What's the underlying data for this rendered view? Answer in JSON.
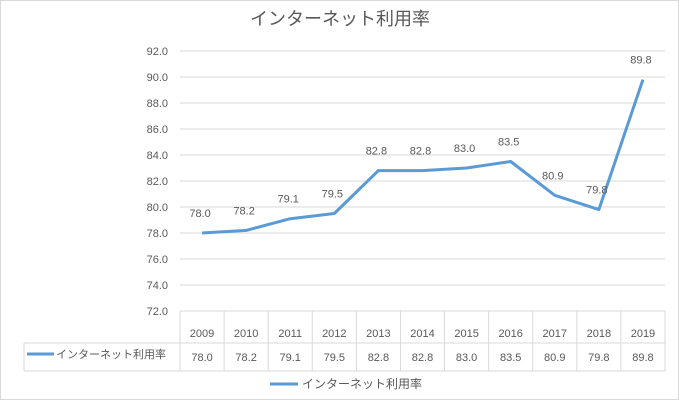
{
  "chart_data": {
    "type": "line",
    "title": "インターネット利用率",
    "categories": [
      "2009",
      "2010",
      "2011",
      "2012",
      "2013",
      "2014",
      "2015",
      "2016",
      "2017",
      "2018",
      "2019"
    ],
    "series": [
      {
        "name": "インターネット利用率",
        "values": [
          78.0,
          78.2,
          79.1,
          79.5,
          82.8,
          82.8,
          83.0,
          83.5,
          80.9,
          79.8,
          89.8
        ],
        "color": "#5b9bd5"
      }
    ],
    "ylim": [
      72.0,
      92.0
    ],
    "yticks": [
      "72.0",
      "74.0",
      "76.0",
      "78.0",
      "80.0",
      "82.0",
      "84.0",
      "86.0",
      "88.0",
      "90.0",
      "92.0"
    ],
    "grid": true,
    "data_labels": true,
    "data_table": true,
    "legend": "bottom"
  }
}
